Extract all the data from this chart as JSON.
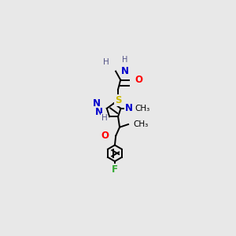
{
  "bg_color": "#e8e8e8",
  "atom_colors": {
    "C": "#000000",
    "N": "#0000cc",
    "O": "#ff0000",
    "S": "#ccbb00",
    "F": "#33aa33",
    "H": "#555588"
  },
  "figsize": [
    3.0,
    3.0
  ],
  "dpi": 100,
  "lw": 1.4
}
